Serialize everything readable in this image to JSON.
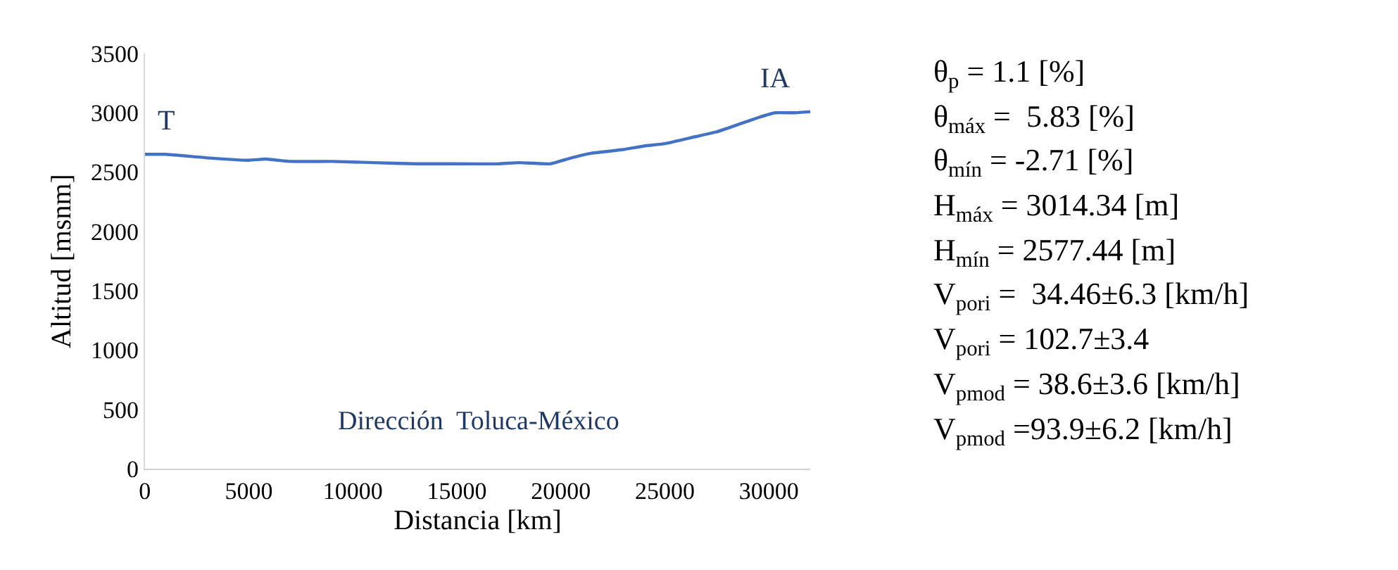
{
  "chart_data": {
    "type": "line",
    "xlabel": "Distancia [km]",
    "ylabel": "Altitud [msnm]",
    "x": [
      0,
      1000,
      3000,
      5000,
      5800,
      7000,
      9000,
      11000,
      13000,
      15000,
      17000,
      18000,
      19500,
      20500,
      21500,
      23000,
      24000,
      25000,
      26500,
      27500,
      28500,
      29500,
      30300,
      31200,
      32000
    ],
    "series": [
      {
        "color": "#4472c4",
        "values": [
          2650,
          2650,
          2620,
          2600,
          2610,
          2590,
          2590,
          2580,
          2570,
          2570,
          2570,
          2580,
          2570,
          2620,
          2660,
          2690,
          2720,
          2740,
          2800,
          2840,
          2900,
          2960,
          3000,
          3000,
          3010
        ]
      }
    ],
    "xlim": [
      0,
      32000
    ],
    "xticks": [
      0,
      5000,
      10000,
      15000,
      20000,
      25000,
      30000
    ],
    "ylim": [
      0,
      3500
    ],
    "yticks": [
      0,
      500,
      1000,
      1500,
      2000,
      2500,
      3000,
      3500
    ],
    "marker": "none",
    "line_style": "solid",
    "annotations": [
      {
        "text": "T",
        "x": 1000,
        "y": 2650
      },
      {
        "text": "IA",
        "x": 30300,
        "y": 3000
      },
      "Dirección  Toluca-México",
      "θ$_{p}$ = 1.1 [%]",
      "θ$_{máx}$ =  5.83 [%]",
      "θ$_{mín}$ = -2.71 [%]",
      "H$_{máx}$ = 3014.34 [m]",
      "H$_{mín}$ = 2577.44 [m]",
      "V$_{p}$$_{ori}$ =  34.46±6.3 [km/h]",
      "V$_{p}$$_{ori}$ = 102.7±3.4",
      "V$_{p}$$_{mod}$ = 38.6±3.6 [km/h]",
      "V$_{p}$$_{mod}$ =93.9±6.2 [km/h]"
    ]
  }
}
